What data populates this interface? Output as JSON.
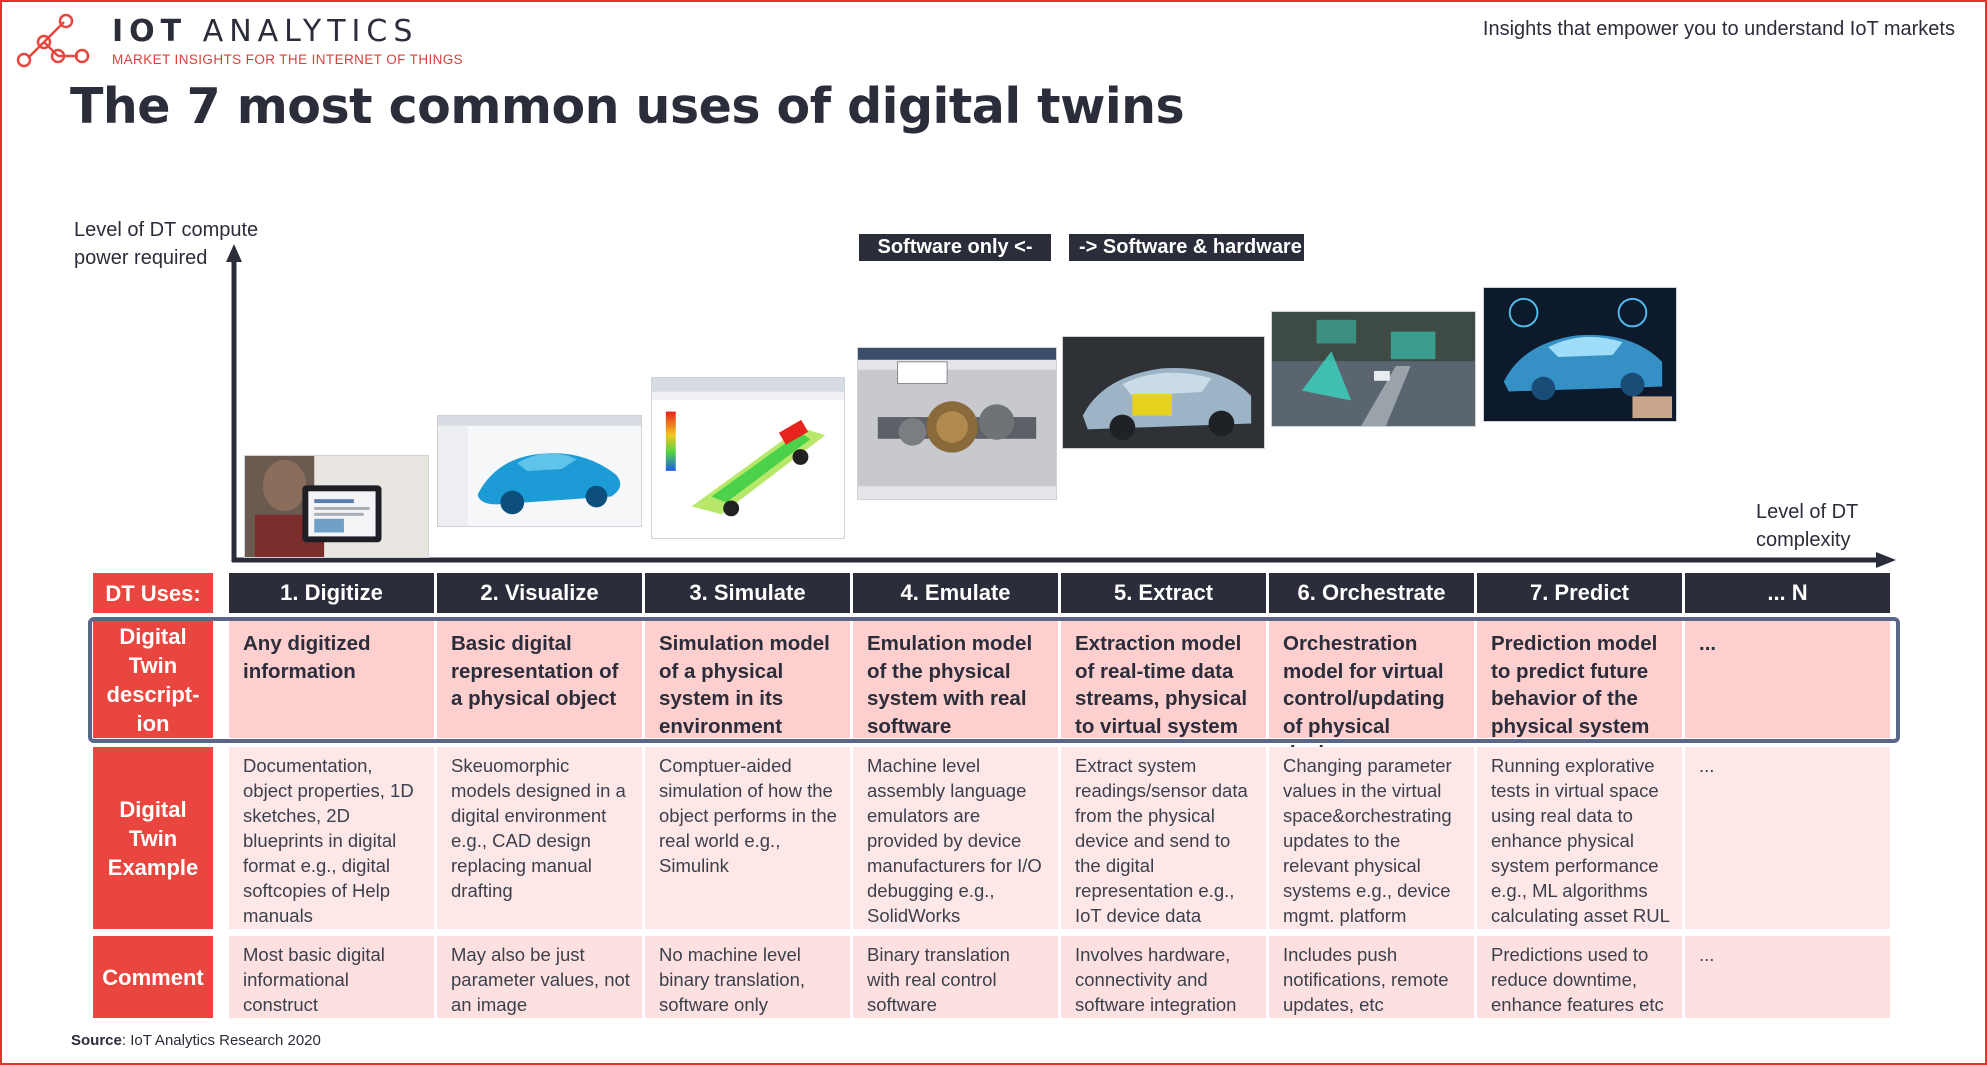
{
  "header": {
    "brand_bold": "IOT",
    "brand_rest": "ANALYTICS",
    "brand_subtitle": "MARKET INSIGHTS FOR THE INTERNET OF THINGS",
    "tagline": "Insights that empower you to understand IoT markets",
    "title": "The 7 most common uses of digital twins"
  },
  "axes": {
    "y_label": "Level of DT compute power required",
    "x_label": "Level of DT complexity"
  },
  "tags": {
    "software_only": "Software only <-",
    "software_hardware": "-> Software & hardware"
  },
  "row_labels": {
    "uses": "DT Uses:",
    "description": "Digital Twin descript-ion",
    "example": "Digital Twin Example",
    "comment": "Comment"
  },
  "uses": [
    {
      "header": "1.   Digitize",
      "description": "Any digitized information",
      "example": "Documentation, object properties, 1D sketches, 2D blueprints in digital format e.g., digital softcopies of Help manuals",
      "comment": "Most basic digital informational construct"
    },
    {
      "header": "2. Visualize",
      "description": "Basic digital representation of a physical object",
      "example": "Skeuomorphic models designed in a digital environment e.g., CAD design replacing manual drafting",
      "comment": "May also be just parameter values, not an image"
    },
    {
      "header": "3. Simulate",
      "description": "Simulation model of a physical system in its environment",
      "example": "Comptuer-aided simulation of how the object performs in the real world e.g., Simulink",
      "comment": "No machine level binary translation, software only"
    },
    {
      "header": "4. Emulate",
      "description": "Emulation model of the physical system with real software",
      "example": "Machine level assembly language emulators are provided by device manufacturers for I/O debugging e.g., SolidWorks",
      "comment": "Binary translation with real control software"
    },
    {
      "header": "5. Extract",
      "description": "Extraction model of real-time data streams, physical to virtual system",
      "example": "Extract system readings/sensor data from the physical device and send to the digital representation e.g., IoT device data",
      "comment": "Involves hardware, connectivity and software integration"
    },
    {
      "header": "6. Orchestrate",
      "description": "Orchestration model for virtual control/updating of physical devices",
      "example": "Changing parameter values in the virtual space&orchestrating updates to the relevant physical systems e.g., device mgmt. platform",
      "comment": "Includes push notifications, remote updates, etc"
    },
    {
      "header": "7. Predict",
      "description": "Prediction model to predict future behavior of the physical system",
      "example": "Running explorative tests in virtual space using real data to enhance physical system performance e.g., ML algorithms calculating asset RUL",
      "comment": "Predictions used to reduce downtime, enhance features etc"
    },
    {
      "header": "... N",
      "description": "...",
      "example": "...",
      "comment": "..."
    }
  ],
  "source": {
    "label": "Source",
    "text": ": IoT Analytics Research 2020"
  },
  "colors": {
    "brand_red": "#e8463e",
    "navy": "#2b2d3a",
    "desc_pink": "#fdcfcf",
    "example_pink": "#fde7e7",
    "highlight_border": "#5a6588"
  }
}
